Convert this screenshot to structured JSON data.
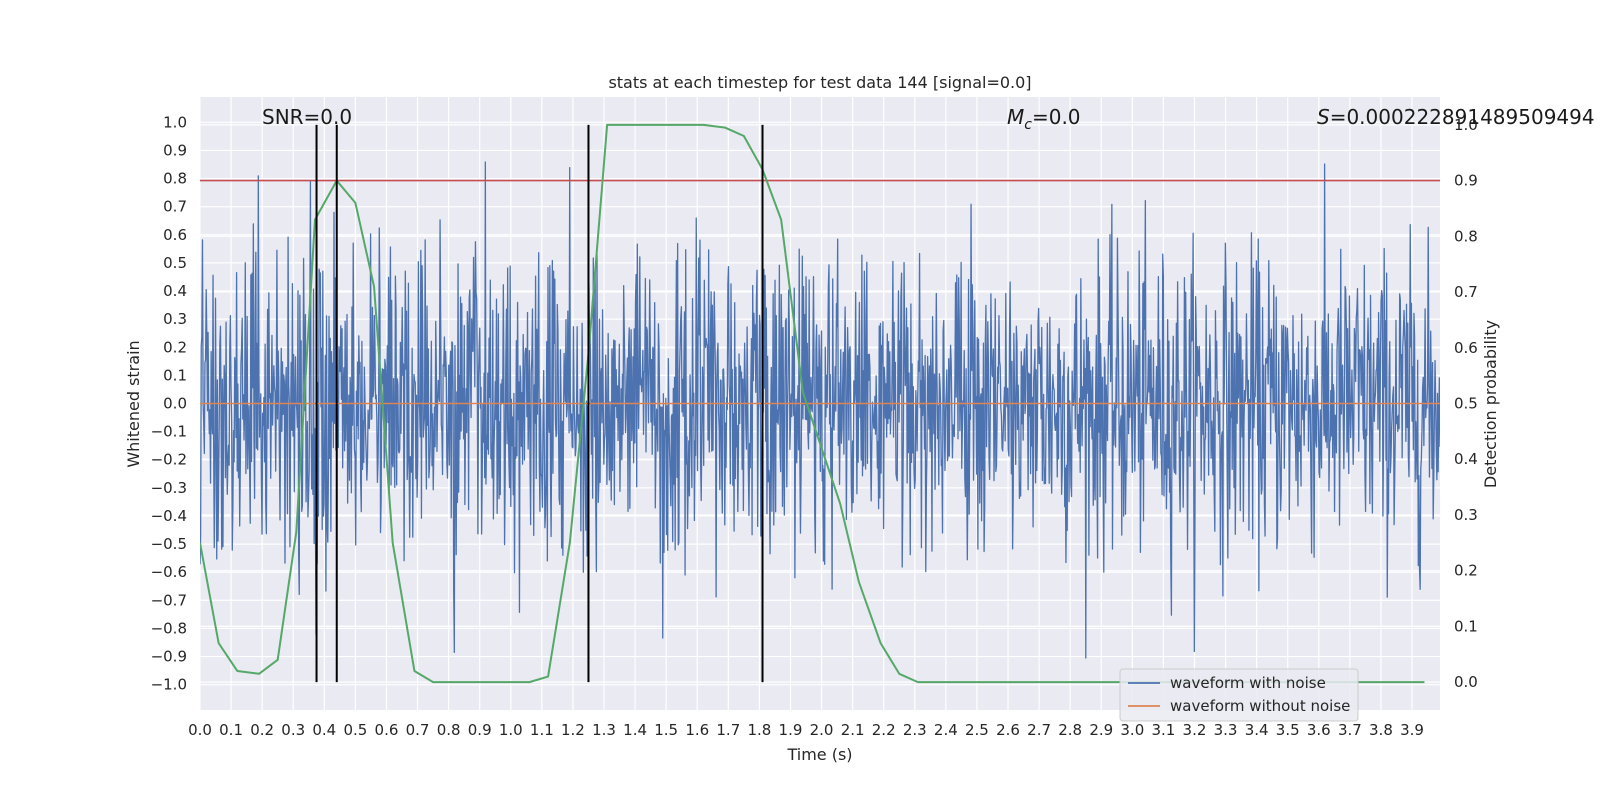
{
  "chart_data": {
    "type": "line",
    "title": "stats at each timestep for test data 144 [signal=0.0]",
    "xlabel": "Time (s)",
    "ylabel": "Whitened strain",
    "y2label": "Detection probability",
    "xlim": [
      0.0,
      3.99
    ],
    "ylim": [
      -1.09,
      1.09
    ],
    "y2lim": [
      -0.05,
      1.05
    ],
    "xticks": [
      0.0,
      0.1,
      0.2,
      0.3,
      0.4,
      0.5,
      0.6,
      0.7,
      0.8,
      0.9,
      1.0,
      1.1,
      1.2,
      1.3,
      1.4,
      1.5,
      1.6,
      1.7,
      1.8,
      1.9,
      2.0,
      2.1,
      2.2,
      2.3,
      2.4,
      2.5,
      2.6,
      2.7,
      2.8,
      2.9,
      3.0,
      3.1,
      3.2,
      3.3,
      3.4,
      3.5,
      3.6,
      3.7,
      3.8,
      3.9
    ],
    "xtick_labels": [
      "0.0",
      "0.1",
      "0.2",
      "0.3",
      "0.4",
      "0.5",
      "0.6",
      "0.7",
      "0.8",
      "0.9",
      "1.0",
      "1.1",
      "1.2",
      "1.3",
      "1.4",
      "1.5",
      "1.6",
      "1.7",
      "1.8",
      "1.9",
      "2.0",
      "2.1",
      "2.2",
      "2.3",
      "2.4",
      "2.5",
      "2.6",
      "2.7",
      "2.8",
      "2.9",
      "3.0",
      "3.1",
      "3.2",
      "3.3",
      "3.4",
      "3.5",
      "3.6",
      "3.7",
      "3.8",
      "3.9"
    ],
    "yticks": [
      1.0,
      0.9,
      0.8,
      0.7,
      0.6,
      0.5,
      0.4,
      0.3,
      0.2,
      0.1,
      0.0,
      -0.1,
      -0.2,
      -0.3,
      -0.4,
      -0.5,
      -0.6,
      -0.7,
      -0.8,
      -0.9,
      -1.0
    ],
    "ytick_labels": [
      "1.0",
      "0.9",
      "0.8",
      "0.7",
      "0.6",
      "0.5",
      "0.4",
      "0.3",
      "0.2",
      "0.1",
      "0.0",
      "−0.1",
      "−0.2",
      "−0.3",
      "−0.4",
      "−0.5",
      "−0.6",
      "−0.7",
      "−0.8",
      "−0.9",
      "−1.0"
    ],
    "y2ticks": [
      1.0,
      0.9,
      0.8,
      0.7,
      0.6,
      0.5,
      0.4,
      0.3,
      0.2,
      0.1,
      0.0
    ],
    "y2tick_labels": [
      "1.0",
      "0.9",
      "0.8",
      "0.7",
      "0.6",
      "0.5",
      "0.4",
      "0.3",
      "0.2",
      "0.1",
      "0.0"
    ],
    "grid": true,
    "background": "#eaeaf2",
    "annotations": {
      "snr": "SNR=0.0",
      "mc_symbol": "M",
      "mc_sub": "c",
      "mc_value": "=0.0",
      "s_symbol": "S",
      "s_value": "=0.000222891489509494"
    },
    "series": [
      {
        "name": "waveform with noise",
        "color": "#4c72b0",
        "kind": "noise",
        "seed": 144,
        "n_points": 2000,
        "envelope_ylim": [
          -1.0,
          1.0
        ]
      },
      {
        "name": "waveform without noise",
        "color": "#dd8452",
        "kind": "constant",
        "value": 0.0
      },
      {
        "name": "detection probability",
        "color": "#55a868",
        "axis": "y2",
        "x": [
          0.0,
          0.06,
          0.12,
          0.19,
          0.25,
          0.31,
          0.37,
          0.44,
          0.5,
          0.56,
          0.62,
          0.69,
          0.75,
          0.81,
          0.87,
          0.94,
          1.0,
          1.06,
          1.12,
          1.19,
          1.25,
          1.31,
          1.37,
          1.44,
          1.5,
          1.56,
          1.62,
          1.69,
          1.75,
          1.81,
          1.87,
          1.94,
          2.0,
          2.06,
          2.12,
          2.19,
          2.25,
          2.31,
          2.37,
          2.44,
          2.5,
          2.56,
          2.62,
          2.69,
          2.75,
          2.81,
          2.87,
          2.94,
          3.0,
          3.06,
          3.12,
          3.19,
          3.25,
          3.31,
          3.37,
          3.44,
          3.5,
          3.56,
          3.62,
          3.69,
          3.75,
          3.81,
          3.87,
          3.94
        ],
        "y": [
          0.25,
          0.07,
          0.02,
          0.015,
          0.04,
          0.27,
          0.83,
          0.9,
          0.86,
          0.71,
          0.25,
          0.02,
          0.0,
          0.0,
          0.0,
          0.0,
          0.0,
          0.0,
          0.01,
          0.25,
          0.59,
          1.0,
          1.0,
          1.0,
          1.0,
          1.0,
          1.0,
          0.995,
          0.98,
          0.92,
          0.83,
          0.52,
          0.42,
          0.32,
          0.18,
          0.07,
          0.015,
          0.0,
          0.0,
          0.0,
          0.0,
          0.0,
          0.0,
          0.0,
          0.0,
          0.0,
          0.0,
          0.0,
          0.0,
          0.0,
          0.0,
          0.0,
          0.0,
          0.0,
          0.0,
          0.0,
          0.0,
          0.0,
          0.0,
          0.0,
          0.0,
          0.0,
          0.0,
          0.0
        ]
      }
    ],
    "hlines": [
      {
        "name": "threshold",
        "color": "#c44e52",
        "axis": "y2",
        "value": 0.9
      }
    ],
    "vlines": [
      {
        "name": "marker-1",
        "color": "#000000",
        "x": 0.375
      },
      {
        "name": "marker-2",
        "color": "#000000",
        "x": 0.44
      },
      {
        "name": "marker-3",
        "color": "#000000",
        "x": 1.25
      },
      {
        "name": "marker-4",
        "color": "#000000",
        "x": 1.81
      }
    ],
    "vline_y2_range": [
      0.0,
      1.0
    ],
    "legend": {
      "placement": "bottom-right",
      "entries": [
        {
          "label": "waveform with noise",
          "color": "#4c72b0"
        },
        {
          "label": "waveform without noise",
          "color": "#dd8452"
        }
      ]
    }
  }
}
